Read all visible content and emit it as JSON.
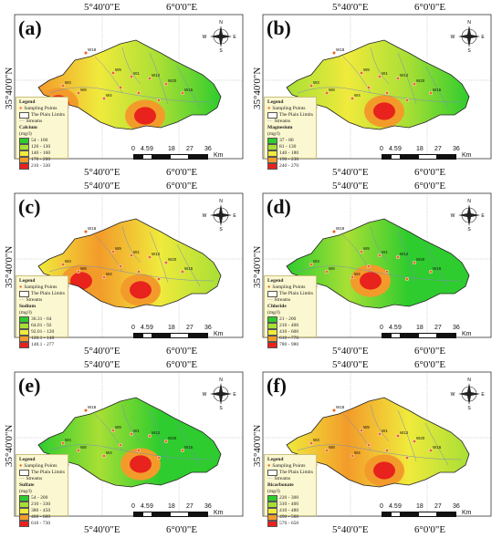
{
  "coords": {
    "lon_left": "5°40'0\"E",
    "lon_right": "6°0'0\"E",
    "lat": "35°40'0\"N"
  },
  "scale": {
    "ticks": [
      "0",
      "4.5",
      "9",
      "18",
      "27",
      "36"
    ],
    "unit": "Km"
  },
  "compass": {
    "n": "N",
    "s": "S",
    "e": "E",
    "w": "W"
  },
  "legend_common": {
    "heading": "Legend",
    "sampling": "Sampling Points",
    "limits": "The Plain Limits",
    "streams": "Streams",
    "unit": "(mg/l)"
  },
  "panels": [
    {
      "label": "(a)",
      "param": "Calcium",
      "classes": [
        "54 - 100",
        "120 - 130",
        "140 - 160",
        "170 - 200",
        "210 - 330"
      ],
      "colors": [
        "#2ecc2e",
        "#a8df35",
        "#f0ea3c",
        "#f39b2a",
        "#e8221d"
      ]
    },
    {
      "label": "(b)",
      "param": "Magnesium",
      "classes": [
        "37 - 80",
        "81 - 130",
        "140 - 180",
        "190 - 230",
        "240 - 270"
      ],
      "colors": [
        "#2ecc2e",
        "#a8df35",
        "#f0ea3c",
        "#f39b2a",
        "#e8221d"
      ]
    },
    {
      "label": "(c)",
      "param": "Sodium",
      "classes": [
        "36.31 - 64",
        "64.01 - 92",
        "92.01 - 120",
        "120.1 - 148",
        "148.1 - 277"
      ],
      "colors": [
        "#2ecc2e",
        "#a8df35",
        "#f0ea3c",
        "#f39b2a",
        "#e8221d"
      ]
    },
    {
      "label": "(d)",
      "param": "Chloride",
      "classes": [
        "21 - 200",
        "210 - 400",
        "410 - 600",
        "610 - 770",
        "780 - 980"
      ],
      "colors": [
        "#2ecc2e",
        "#a8df35",
        "#f0ea3c",
        "#f39b2a",
        "#e8221d"
      ]
    },
    {
      "label": "(e)",
      "param": "Sulfate",
      "classes": [
        "54 - 200",
        "210 - 330",
        "380 - 450",
        "460 - 600",
        "610 - 730"
      ],
      "colors": [
        "#2ecc2e",
        "#a8df35",
        "#f0ea3c",
        "#f39b2a",
        "#e8221d"
      ]
    },
    {
      "label": "(f)",
      "param": "Bicarbonate",
      "classes": [
        "220 - 300",
        "310 - 400",
        "410 - 480",
        "490 - 560",
        "570 - 650"
      ],
      "colors": [
        "#2ecc2e",
        "#a8df35",
        "#f0ea3c",
        "#f39b2a",
        "#e8221d"
      ]
    }
  ],
  "well_labels": [
    "W18",
    "W3",
    "W8",
    "W9",
    "W1",
    "W12",
    "W20",
    "W15",
    "W4"
  ]
}
